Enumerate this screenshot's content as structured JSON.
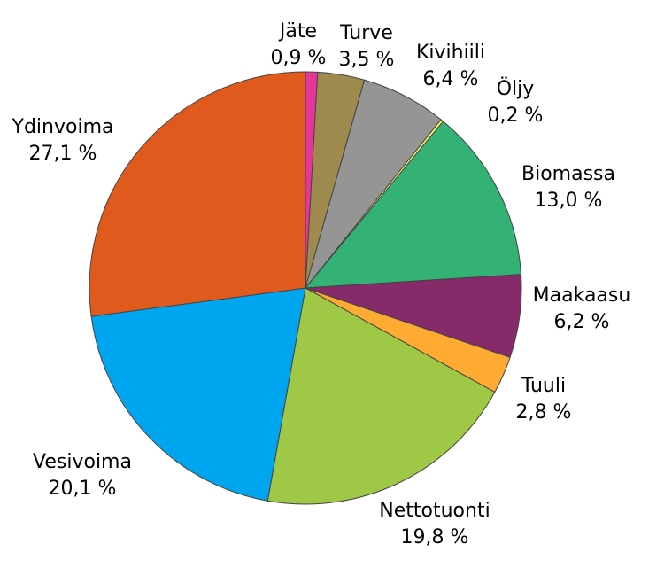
{
  "chart_data": {
    "type": "pie",
    "start_angle_deg": 90,
    "direction": "clockwise",
    "slices": [
      {
        "label": "Jäte",
        "value": 0.9,
        "value_label": "0,9 %",
        "color": "#e8359a"
      },
      {
        "label": "Turve",
        "value": 3.5,
        "value_label": "3,5 %",
        "color": "#9e8a4e"
      },
      {
        "label": "Kivihiili",
        "value": 6.4,
        "value_label": "6,4 %",
        "color": "#959595"
      },
      {
        "label": "Öljy",
        "value": 0.2,
        "value_label": "0,2 %",
        "color": "#ffff66"
      },
      {
        "label": "Biomassa",
        "value": 13.0,
        "value_label": "13,0 %",
        "color": "#34b174"
      },
      {
        "label": "Maakaasu",
        "value": 6.2,
        "value_label": "6,2 %",
        "color": "#862a6a"
      },
      {
        "label": "Tuuli",
        "value": 2.8,
        "value_label": "2,8 %",
        "color": "#ffab33"
      },
      {
        "label": "Nettotuonti",
        "value": 19.8,
        "value_label": "19,8 %",
        "color": "#9ec846"
      },
      {
        "label": "Vesivoima",
        "value": 20.1,
        "value_label": "20,1 %",
        "color": "#00a5ef"
      },
      {
        "label": "Ydinvoima",
        "value": 27.1,
        "value_label": "27,1 %",
        "color": "#e05a1e"
      }
    ]
  }
}
